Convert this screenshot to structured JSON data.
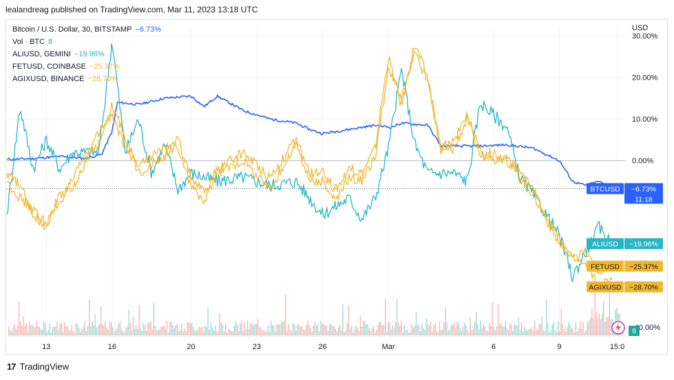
{
  "header": {
    "published": "lealandreag published on TradingView.com, Mar 11, 2023 13:18 UTC"
  },
  "legend": [
    {
      "label": "Bitcoin / U.S. Dollar, 30, BITSTAMP",
      "value": "−6.73%",
      "color": "#2962ff"
    },
    {
      "label": "Vol · BTC",
      "value": "8",
      "color": "#26a69a"
    },
    {
      "label": "ALIUSD, GEMINI",
      "value": "−19.96%",
      "color": "#26b6c6"
    },
    {
      "label": "FETUSD, COINBASE",
      "value": "−25.37%",
      "color": "#f2b731"
    },
    {
      "label": "AGIXUSD, BINANCE",
      "value": "−28.70%",
      "color": "#f2b731"
    }
  ],
  "footer": {
    "brand": "TradingView",
    "logo": "17"
  },
  "chart_data": {
    "type": "line",
    "yaxis_unit": "USD",
    "y_ticks": [
      "30.00%",
      "20.00%",
      "10.00%",
      "0.00%",
      "-40.00%"
    ],
    "y_tick_values": [
      30,
      20,
      10,
      0,
      -40
    ],
    "partially_hidden_tick": "-30.00%",
    "ylim": [
      -42,
      32
    ],
    "x_ticks": [
      "13",
      "16",
      "20",
      "23",
      "26",
      "Mar",
      "6",
      "9",
      "15:0"
    ],
    "x_tick_positions": [
      1.5,
      4.0,
      7.0,
      9.5,
      12.0,
      14.5,
      18.5,
      21.0,
      23.2
    ],
    "xlim": [
      0,
      23.5
    ],
    "grid": true,
    "series": [
      {
        "name": "BTCUSD",
        "color": "#2962ff",
        "last": -6.73,
        "points": [
          [
            0,
            0.3
          ],
          [
            1,
            0.5
          ],
          [
            2,
            1.0
          ],
          [
            3,
            0.5
          ],
          [
            3.6,
            1.5
          ],
          [
            4,
            7
          ],
          [
            4.2,
            14
          ],
          [
            5,
            13.5
          ],
          [
            6,
            15
          ],
          [
            7,
            15.5
          ],
          [
            7.5,
            13
          ],
          [
            8,
            15.5
          ],
          [
            9,
            12
          ],
          [
            10,
            10
          ],
          [
            11,
            9
          ],
          [
            11.5,
            7.5
          ],
          [
            12,
            6.5
          ],
          [
            13,
            7.5
          ],
          [
            14,
            8.5
          ],
          [
            14.6,
            8
          ],
          [
            15,
            9
          ],
          [
            16,
            8.5
          ],
          [
            16.5,
            3.5
          ],
          [
            17,
            3.5
          ],
          [
            18,
            3.5
          ],
          [
            19,
            3.8
          ],
          [
            20,
            3
          ],
          [
            21,
            0
          ],
          [
            21.5,
            -5
          ],
          [
            22,
            -6
          ],
          [
            22.5,
            -5
          ],
          [
            23,
            -6.73
          ]
        ]
      },
      {
        "name": "ALIUSD",
        "color": "#26b6c6",
        "last": -19.96,
        "points": [
          [
            0,
            -13
          ],
          [
            0.5,
            13
          ],
          [
            1,
            -2
          ],
          [
            1.5,
            5
          ],
          [
            2,
            -2
          ],
          [
            2.5,
            2
          ],
          [
            3,
            2
          ],
          [
            3.5,
            2
          ],
          [
            4,
            29
          ],
          [
            4.5,
            2
          ],
          [
            5,
            10
          ],
          [
            5.5,
            -3
          ],
          [
            6,
            4
          ],
          [
            6.5,
            -7
          ],
          [
            7,
            -3
          ],
          [
            8,
            -5
          ],
          [
            9,
            -4
          ],
          [
            10,
            -6
          ],
          [
            11,
            -5
          ],
          [
            12,
            -13
          ],
          [
            13,
            -9
          ],
          [
            13.5,
            -14
          ],
          [
            14,
            -9
          ],
          [
            14.5,
            3
          ],
          [
            15,
            22
          ],
          [
            15.5,
            4
          ],
          [
            16,
            -3
          ],
          [
            17,
            -3
          ],
          [
            17.5,
            -5
          ],
          [
            18,
            14
          ],
          [
            19,
            8
          ],
          [
            19.5,
            -4
          ],
          [
            20,
            -8
          ],
          [
            20.5,
            -13
          ],
          [
            21,
            -18
          ],
          [
            21.5,
            -28
          ],
          [
            22,
            -22
          ],
          [
            22.5,
            -16
          ],
          [
            23,
            -19.96
          ]
        ]
      },
      {
        "name": "FETUSD",
        "color": "#f2b731",
        "last": -25.37,
        "points": [
          [
            0,
            -5
          ],
          [
            0.5,
            -9
          ],
          [
            1,
            -12
          ],
          [
            1.5,
            -15
          ],
          [
            2,
            -10
          ],
          [
            2.5,
            -5
          ],
          [
            3,
            2
          ],
          [
            3.5,
            4
          ],
          [
            4,
            13
          ],
          [
            4.5,
            6
          ],
          [
            5,
            -3
          ],
          [
            6,
            1
          ],
          [
            6.5,
            5
          ],
          [
            7,
            -4
          ],
          [
            7.5,
            -8
          ],
          [
            8,
            -2
          ],
          [
            9,
            2
          ],
          [
            10,
            -4
          ],
          [
            11,
            5
          ],
          [
            11.5,
            -3
          ],
          [
            12,
            -3
          ],
          [
            12.5,
            -7
          ],
          [
            13,
            -2
          ],
          [
            13.5,
            -3
          ],
          [
            14,
            3
          ],
          [
            14.5,
            25
          ],
          [
            15,
            13
          ],
          [
            15.5,
            28
          ],
          [
            16,
            20
          ],
          [
            16.5,
            2
          ],
          [
            17,
            3
          ],
          [
            17.5,
            10
          ],
          [
            18,
            1
          ],
          [
            18.5,
            2
          ],
          [
            19,
            0
          ],
          [
            19.5,
            -4
          ],
          [
            20,
            -8
          ],
          [
            20.5,
            -14
          ],
          [
            21,
            -20
          ],
          [
            21.5,
            -24
          ],
          [
            22,
            -22
          ],
          [
            22.5,
            -27
          ],
          [
            23,
            -25.37
          ]
        ]
      },
      {
        "name": "AGIXUSD",
        "color": "#f2b731",
        "last": -28.7,
        "points": [
          [
            0,
            -3
          ],
          [
            0.5,
            -6
          ],
          [
            1,
            -13
          ],
          [
            1.5,
            -16
          ],
          [
            2,
            -8
          ],
          [
            2.5,
            -7
          ],
          [
            3,
            0
          ],
          [
            3.5,
            7
          ],
          [
            4,
            11
          ],
          [
            4.5,
            3
          ],
          [
            5,
            -1
          ],
          [
            6,
            3
          ],
          [
            6.5,
            3
          ],
          [
            7,
            -6
          ],
          [
            7.5,
            -10
          ],
          [
            8,
            -3
          ],
          [
            9,
            0
          ],
          [
            10,
            -7
          ],
          [
            11,
            4
          ],
          [
            11.5,
            -5
          ],
          [
            12,
            -5
          ],
          [
            12.5,
            -10
          ],
          [
            13,
            -4
          ],
          [
            13.5,
            -5
          ],
          [
            14,
            1
          ],
          [
            14.5,
            22
          ],
          [
            15,
            15
          ],
          [
            15.5,
            26
          ],
          [
            16,
            19
          ],
          [
            16.5,
            3
          ],
          [
            17,
            5
          ],
          [
            17.5,
            11
          ],
          [
            18,
            2
          ],
          [
            18.5,
            0
          ],
          [
            19,
            1
          ],
          [
            19.5,
            -3
          ],
          [
            20,
            -7
          ],
          [
            20.5,
            -13
          ],
          [
            21,
            -19
          ],
          [
            21.5,
            -23
          ],
          [
            22,
            -25
          ],
          [
            22.5,
            -30
          ],
          [
            23,
            -28.7
          ]
        ]
      }
    ],
    "badges": [
      {
        "label": "BTCUSD",
        "value": "−6.73%",
        "sub": "11:18",
        "color": "#2962ff"
      },
      {
        "label": "ALIUSD",
        "value": "−19.96%",
        "color": "#26b6c6"
      },
      {
        "label": "FETUSD",
        "value": "−25.37%",
        "color": "#f2b731"
      },
      {
        "label": "AGIXUSD",
        "value": "−28.70%",
        "color": "#f2b731"
      }
    ],
    "volume_badge": {
      "value": "8",
      "color": "#26a69a"
    }
  }
}
